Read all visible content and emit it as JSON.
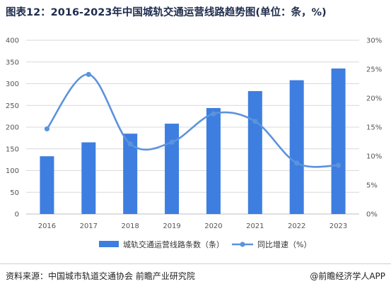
{
  "title": "图表12：2016-2023年中国城轨交通运营线路趋势图(单位：条，%)",
  "footer": {
    "source": "资料来源：中国城市轨道交通协会 前瞻产业研究院",
    "credit": "@前瞻经济学人APP"
  },
  "colors": {
    "bar": "#3d7ee0",
    "line": "#5b93dc",
    "grid": "#d9d9d9"
  },
  "chart_data": {
    "type": "bar",
    "categories": [
      "2016",
      "2017",
      "2018",
      "2019",
      "2020",
      "2021",
      "2022",
      "2023"
    ],
    "series": [
      {
        "name": "城轨交通运营线路条数（条）",
        "type": "bar",
        "axis": "left",
        "values": [
          133,
          165,
          185,
          208,
          244,
          283,
          308,
          335
        ]
      },
      {
        "name": "同比增速（%）",
        "type": "line",
        "axis": "right",
        "smooth": true,
        "values": [
          14.7,
          24.1,
          12.1,
          12.4,
          17.3,
          16.0,
          8.8,
          8.4
        ]
      }
    ],
    "yleft": {
      "ylim": [
        0,
        400
      ],
      "ticks": [
        "0",
        "50",
        "100",
        "150",
        "200",
        "250",
        "300",
        "350",
        "400"
      ]
    },
    "yright": {
      "ylim": [
        0,
        30
      ],
      "ticks": [
        "0%",
        "5%",
        "10%",
        "15%",
        "20%",
        "25%",
        "30%"
      ]
    },
    "grid": true,
    "legend": "bottom"
  }
}
